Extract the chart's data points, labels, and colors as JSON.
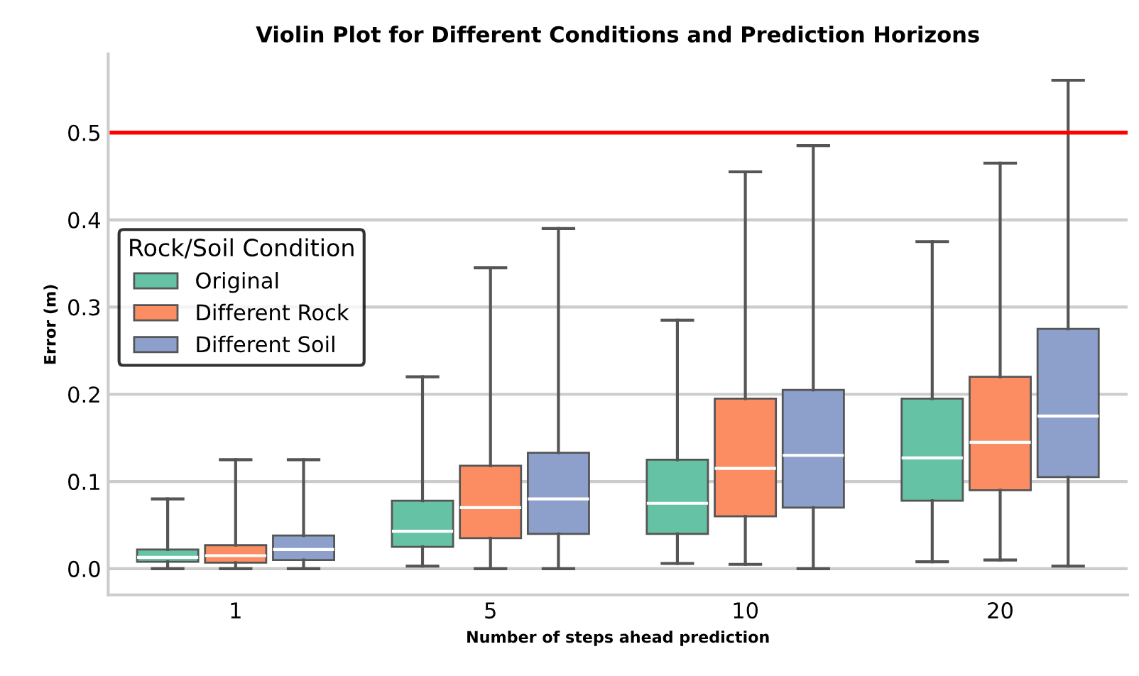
{
  "chart_data": {
    "type": "box",
    "title": "Violin Plot for Different Conditions and Prediction Horizons",
    "xlabel": "Number of steps ahead prediction",
    "ylabel": "Error (m)",
    "legend_title": "Rock/Soil Condition",
    "categories": [
      "1",
      "5",
      "10",
      "20"
    ],
    "series": [
      {
        "name": "Original",
        "color": "#66c2a5",
        "boxes": [
          {
            "low": 0.0,
            "q1": 0.008,
            "median": 0.013,
            "q3": 0.022,
            "high": 0.08
          },
          {
            "low": 0.003,
            "q1": 0.025,
            "median": 0.043,
            "q3": 0.078,
            "high": 0.22
          },
          {
            "low": 0.006,
            "q1": 0.04,
            "median": 0.075,
            "q3": 0.125,
            "high": 0.285
          },
          {
            "low": 0.008,
            "q1": 0.078,
            "median": 0.127,
            "q3": 0.195,
            "high": 0.375
          }
        ]
      },
      {
        "name": "Different Rock",
        "color": "#fc8d62",
        "boxes": [
          {
            "low": 0.0,
            "q1": 0.007,
            "median": 0.015,
            "q3": 0.027,
            "high": 0.125
          },
          {
            "low": 0.0,
            "q1": 0.035,
            "median": 0.07,
            "q3": 0.118,
            "high": 0.345
          },
          {
            "low": 0.005,
            "q1": 0.06,
            "median": 0.115,
            "q3": 0.195,
            "high": 0.455
          },
          {
            "low": 0.01,
            "q1": 0.09,
            "median": 0.145,
            "q3": 0.22,
            "high": 0.465
          }
        ]
      },
      {
        "name": "Different Soil",
        "color": "#8da0cb",
        "boxes": [
          {
            "low": 0.0,
            "q1": 0.01,
            "median": 0.022,
            "q3": 0.038,
            "high": 0.125
          },
          {
            "low": 0.0,
            "q1": 0.04,
            "median": 0.08,
            "q3": 0.133,
            "high": 0.39
          },
          {
            "low": 0.0,
            "q1": 0.07,
            "median": 0.13,
            "q3": 0.205,
            "high": 0.485
          },
          {
            "low": 0.003,
            "q1": 0.105,
            "median": 0.175,
            "q3": 0.275,
            "high": 0.56
          }
        ]
      }
    ],
    "ylim": [
      -0.03,
      0.59
    ],
    "yticks": [
      {
        "value": 0,
        "label": "0.0"
      },
      {
        "value": 0.1,
        "label": "0.1"
      },
      {
        "value": 0.2,
        "label": "0.2"
      },
      {
        "value": 0.3,
        "label": "0.3"
      },
      {
        "value": 0.4,
        "label": "0.4"
      },
      {
        "value": 0.5,
        "label": "0.5"
      }
    ],
    "ref_lines": [
      {
        "axis": "y",
        "value": 0.5,
        "color": "#ff0000"
      }
    ],
    "grid": "y",
    "legend": "left"
  }
}
